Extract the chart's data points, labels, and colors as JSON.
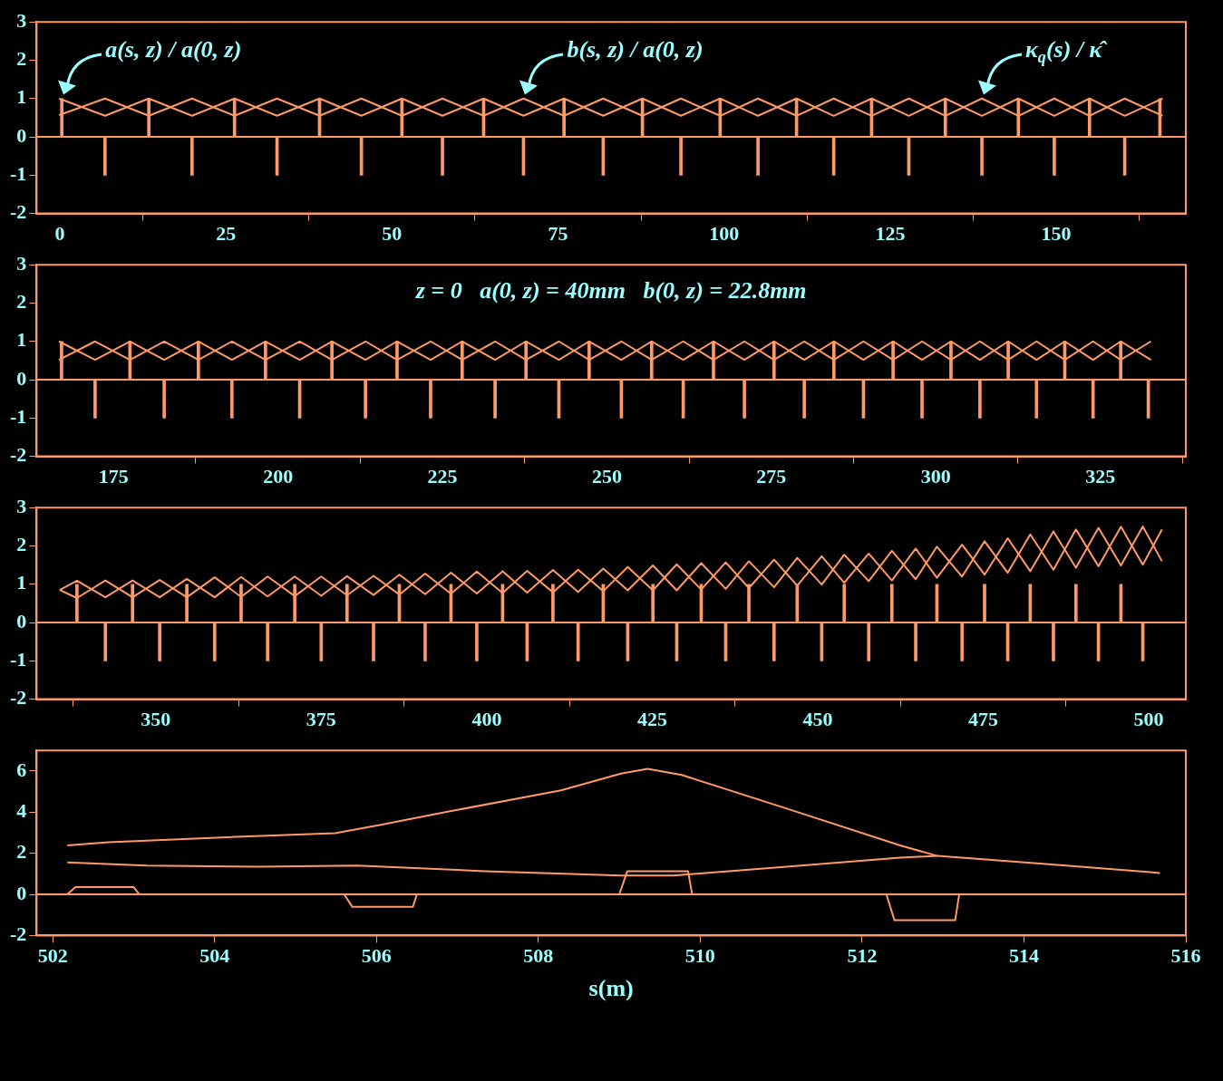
{
  "chart_data": [
    {
      "type": "line",
      "xlim": [
        -3.5,
        169.5
      ],
      "xticks": [
        0,
        25,
        50,
        75,
        100,
        125,
        150
      ],
      "ylim": [
        -2,
        3
      ],
      "yticks": [
        -2,
        -1,
        0,
        1,
        2,
        3
      ],
      "ref_lines": [
        {
          "axis": "y",
          "value": 0,
          "color": "#ff9966"
        }
      ],
      "annotations": [
        {
          "text": "a(s, z) / a(0, z)",
          "x": 0.3,
          "y": 1.0
        },
        {
          "text": "b(s, z) / a(0, z)",
          "x": 69.8,
          "y": 1.0
        },
        {
          "text": "κ$_{q}$(s) / κ̂",
          "x": 138.8,
          "y": 1.0
        }
      ],
      "series": [
        {
          "type": "bar",
          "color": "#ff9966",
          "x": [
            0.3,
            6.8,
            13.4,
            19.9,
            26.3,
            32.7,
            39.1,
            45.4,
            51.5,
            57.6,
            63.8,
            69.8,
            75.9,
            81.8,
            87.7,
            93.5,
            99.4,
            105.1,
            110.9,
            116.5,
            122.2,
            127.8,
            133.3,
            138.8,
            144.3,
            149.7,
            155.0,
            160.3,
            165.6
          ],
          "values": [
            1,
            -1,
            1,
            -1,
            1,
            -1,
            1,
            -1,
            1,
            -1,
            1,
            -1,
            1,
            -1,
            1,
            -1,
            1,
            -1,
            1,
            -1,
            1,
            -1,
            1,
            -1,
            1,
            -1,
            1,
            -1,
            1
          ]
        },
        {
          "color": "#ff9966",
          "x": [
            -0.1,
            6.8,
            13.4,
            19.9,
            26.3,
            32.7,
            39.1,
            45.4,
            51.5,
            57.6,
            63.8,
            69.8,
            75.9,
            81.8,
            87.7,
            93.5,
            99.4,
            105.1,
            110.9,
            116.5,
            122.2,
            127.8,
            133.3,
            138.8,
            144.3,
            149.7,
            155.0,
            160.3,
            166.0
          ],
          "values": [
            1.0,
            0.55,
            1.0,
            0.55,
            1.0,
            0.55,
            1.0,
            0.55,
            1.0,
            0.55,
            1.0,
            0.55,
            1.0,
            0.55,
            1.0,
            0.55,
            1.0,
            0.55,
            1.0,
            0.55,
            1.0,
            0.55,
            1.0,
            0.55,
            1.0,
            0.55,
            1.0,
            0.55,
            1.0
          ]
        },
        {
          "color": "#ff9966",
          "x": [
            -0.1,
            6.8,
            13.4,
            19.9,
            26.3,
            32.7,
            39.1,
            45.4,
            51.5,
            57.6,
            63.8,
            69.8,
            75.9,
            81.8,
            87.7,
            93.5,
            99.4,
            105.1,
            110.9,
            116.5,
            122.2,
            127.8,
            133.3,
            138.8,
            144.3,
            149.7,
            155.0,
            160.3,
            166.0
          ],
          "values": [
            0.57,
            1.0,
            0.55,
            1.0,
            0.55,
            1.0,
            0.55,
            1.0,
            0.55,
            1.0,
            0.55,
            1.0,
            0.55,
            1.0,
            0.55,
            1.0,
            0.55,
            1.0,
            0.55,
            1.0,
            0.55,
            1.0,
            0.55,
            1.0,
            0.55,
            1.0,
            0.55,
            1.0,
            0.55
          ]
        }
      ]
    },
    {
      "type": "line",
      "xlim": [
        163.3,
        338
      ],
      "xticks": [
        175,
        200,
        225,
        250,
        275,
        300,
        325
      ],
      "ylim": [
        -2,
        3
      ],
      "yticks": [
        -2,
        -1,
        0,
        1,
        2,
        3
      ],
      "ref_lines": [
        {
          "axis": "y",
          "value": 0,
          "color": "#ff9966"
        }
      ],
      "annotations": [
        "z = 0   a(0, z) = 40mm   b(0, z) = 22.8mm"
      ],
      "series": [
        {
          "type": "bar",
          "color": "#ff9966",
          "x": [
            167.1,
            172.2,
            177.5,
            182.7,
            187.9,
            193.0,
            198.1,
            203.3,
            208.2,
            213.3,
            218.1,
            223.2,
            228.0,
            233.0,
            237.7,
            242.7,
            247.3,
            252.2,
            256.8,
            261.6,
            266.2,
            270.9,
            275.4,
            280.0,
            284.5,
            289.0,
            293.5,
            297.9,
            302.3,
            306.7,
            311.0,
            315.3,
            319.6,
            323.9,
            328.1,
            332.3
          ],
          "values": [
            1,
            -1,
            1,
            -1,
            1,
            -1,
            1,
            -1,
            1,
            -1,
            1,
            -1,
            1,
            -1,
            1,
            -1,
            1,
            -1,
            1,
            -1,
            1,
            -1,
            1,
            -1,
            1,
            -1,
            1,
            -1,
            1,
            -1,
            1,
            -1,
            1,
            -1,
            1,
            -1
          ]
        },
        {
          "color": "#ff9966",
          "x": [
            166.7,
            172.2,
            177.5,
            182.7,
            187.9,
            193.0,
            198.1,
            203.3,
            208.2,
            213.3,
            218.1,
            223.2,
            228.0,
            233.0,
            237.7,
            242.7,
            247.3,
            252.2,
            256.8,
            261.6,
            266.2,
            270.9,
            275.4,
            280.0,
            284.5,
            289.0,
            293.5,
            297.9,
            302.3,
            306.7,
            311.0,
            315.3,
            319.6,
            323.9,
            328.1,
            332.7
          ],
          "values": [
            1.0,
            0.52,
            1.0,
            0.52,
            1.0,
            0.52,
            1.0,
            0.52,
            1.0,
            0.52,
            1.0,
            0.52,
            1.0,
            0.52,
            1.0,
            0.52,
            1.0,
            0.52,
            1.0,
            0.52,
            1.0,
            0.52,
            1.0,
            0.52,
            1.0,
            0.52,
            1.0,
            0.52,
            1.0,
            0.52,
            1.0,
            0.52,
            1.0,
            0.52,
            1.0,
            0.52
          ]
        },
        {
          "color": "#ff9966",
          "x": [
            166.7,
            172.2,
            177.5,
            182.7,
            187.9,
            193.0,
            198.1,
            203.3,
            208.2,
            213.3,
            218.1,
            223.2,
            228.0,
            233.0,
            237.7,
            242.7,
            247.3,
            252.2,
            256.8,
            261.6,
            266.2,
            270.9,
            275.4,
            280.0,
            284.5,
            289.0,
            293.5,
            297.9,
            302.3,
            306.7,
            311.0,
            315.3,
            319.6,
            323.9,
            328.1,
            332.7
          ],
          "values": [
            0.52,
            1.0,
            0.52,
            1.0,
            0.52,
            1.0,
            0.52,
            1.0,
            0.52,
            1.0,
            0.52,
            1.0,
            0.52,
            1.0,
            0.52,
            1.0,
            0.52,
            1.0,
            0.52,
            1.0,
            0.52,
            1.0,
            0.52,
            1.0,
            0.52,
            1.0,
            0.52,
            1.0,
            0.52,
            1.0,
            0.52,
            1.0,
            0.52,
            1.0,
            0.52,
            1.0
          ]
        }
      ]
    },
    {
      "type": "line",
      "xlim": [
        332,
        505.6
      ],
      "xticks": [
        350,
        375,
        400,
        425,
        450,
        475,
        500
      ],
      "ylim": [
        -2,
        3
      ],
      "yticks": [
        -2,
        -1,
        0,
        1,
        2,
        3
      ],
      "ref_lines": [
        {
          "axis": "y",
          "value": 0,
          "color": "#ff9966"
        }
      ],
      "series": [
        {
          "type": "bar",
          "color": "#ff9966",
          "x": [
            338.1,
            342.4,
            346.5,
            350.6,
            354.7,
            358.9,
            362.9,
            366.9,
            371.0,
            375.0,
            378.9,
            382.9,
            386.8,
            390.7,
            394.6,
            398.5,
            402.4,
            406.1,
            410.0,
            413.8,
            417.6,
            421.3,
            425.1,
            428.7,
            432.4,
            436.1,
            439.6,
            443.4,
            446.9,
            450.6,
            454.0,
            457.7,
            461.2,
            464.8,
            468.0,
            471.8,
            475.2,
            478.7,
            482.1,
            485.6,
            489.0,
            492.4,
            495.8,
            499.1
          ],
          "values": [
            1,
            -1,
            1,
            -1,
            1,
            -1,
            1,
            -1,
            1,
            -1,
            1,
            -1,
            1,
            -1,
            1,
            -1,
            1,
            -1,
            1,
            -1,
            1,
            -1,
            1,
            -1,
            1,
            -1,
            1,
            -1,
            1,
            -1,
            1,
            -1,
            1,
            -1,
            1,
            -1,
            1,
            -1,
            1,
            -1,
            1,
            -1,
            1,
            -1
          ]
        },
        {
          "color": "#ff9966",
          "x": [
            335.5,
            338.1,
            342.4,
            346.5,
            350.6,
            354.7,
            358.9,
            362.9,
            366.9,
            371.0,
            375.0,
            378.9,
            382.9,
            386.8,
            390.7,
            394.6,
            398.5,
            402.4,
            406.1,
            410.0,
            413.8,
            417.6,
            421.3,
            425.1,
            428.7,
            432.4,
            436.1,
            439.6,
            443.4,
            446.9,
            450.6,
            454.0,
            457.7,
            461.2,
            464.8,
            468.0,
            471.8,
            475.2,
            478.7,
            482.1,
            485.6,
            489.0,
            492.4,
            495.8,
            499.1,
            502.0
          ],
          "values": [
            0.85,
            1.09,
            0.66,
            1.1,
            0.66,
            1.14,
            0.66,
            1.19,
            0.68,
            1.2,
            0.7,
            1.21,
            0.72,
            1.25,
            0.74,
            1.3,
            0.76,
            1.34,
            0.78,
            1.37,
            0.8,
            1.41,
            0.84,
            1.49,
            0.84,
            1.55,
            0.88,
            1.6,
            0.92,
            1.69,
            0.99,
            1.77,
            1.08,
            1.87,
            1.13,
            1.98,
            1.2,
            2.12,
            1.3,
            2.3,
            1.38,
            2.43,
            1.47,
            2.5,
            1.51,
            2.43
          ]
        },
        {
          "color": "#ff9966",
          "x": [
            335.5,
            338.1,
            342.4,
            346.5,
            350.6,
            354.7,
            358.9,
            362.9,
            366.9,
            371.0,
            375.0,
            378.9,
            382.9,
            386.8,
            390.7,
            394.6,
            398.5,
            402.4,
            406.1,
            410.0,
            413.8,
            417.6,
            421.3,
            425.1,
            428.7,
            432.4,
            436.1,
            439.6,
            443.4,
            446.9,
            450.6,
            454.0,
            457.7,
            461.2,
            464.8,
            468.0,
            471.8,
            475.2,
            478.7,
            482.1,
            485.6,
            489.0,
            492.4,
            495.8,
            499.1,
            502.0
          ],
          "values": [
            0.85,
            0.64,
            1.1,
            0.66,
            1.11,
            0.66,
            1.18,
            0.67,
            1.2,
            0.69,
            1.2,
            0.71,
            1.22,
            0.73,
            1.28,
            0.75,
            1.33,
            0.77,
            1.35,
            0.79,
            1.38,
            0.82,
            1.45,
            0.84,
            1.52,
            0.86,
            1.57,
            0.9,
            1.64,
            0.96,
            1.73,
            1.04,
            1.8,
            1.1,
            1.93,
            1.17,
            2.03,
            1.25,
            2.2,
            1.34,
            2.38,
            1.43,
            2.47,
            1.49,
            2.51,
            1.6
          ]
        }
      ]
    },
    {
      "type": "line",
      "xlim": [
        501.8,
        516
      ],
      "xticks": [
        502,
        504,
        506,
        508,
        510,
        512,
        514,
        516
      ],
      "ylim": [
        -2,
        7
      ],
      "yticks": [
        -2,
        0,
        2,
        4,
        6
      ],
      "xlabel": "s(m)",
      "ref_lines": [
        {
          "axis": "y",
          "value": 0,
          "color": "#ff9966"
        }
      ],
      "series": [
        {
          "color": "#ff9966",
          "x": [
            502.18,
            502.28,
            503.0,
            503.07,
            505.6,
            505.7,
            506.45,
            506.5,
            509.0,
            509.1,
            509.85,
            509.9,
            512.3,
            512.4,
            513.15,
            513.2
          ],
          "values": [
            0,
            0.35,
            0.35,
            0,
            0,
            -0.6,
            -0.6,
            0,
            0,
            1.13,
            1.13,
            0,
            0,
            -1.26,
            -1.26,
            0
          ]
        },
        {
          "color": "#ff9966",
          "x": [
            502.18,
            502.69,
            504.09,
            505.49,
            506.04,
            506.88,
            508.28,
            509.02,
            509.35,
            509.77,
            511.07,
            512.47,
            512.93,
            514.23,
            515.68
          ],
          "values": [
            2.38,
            2.53,
            2.77,
            2.98,
            3.37,
            4.02,
            5.06,
            5.87,
            6.11,
            5.81,
            4.17,
            2.38,
            1.87,
            1.49,
            1.04
          ]
        },
        {
          "color": "#ff9966",
          "x": [
            502.18,
            503.16,
            504.55,
            505.76,
            507.34,
            509.02,
            509.67,
            511.07,
            512.47,
            512.93
          ],
          "values": [
            1.55,
            1.4,
            1.34,
            1.4,
            1.13,
            0.92,
            0.92,
            1.34,
            1.79,
            1.87
          ]
        }
      ]
    }
  ]
}
